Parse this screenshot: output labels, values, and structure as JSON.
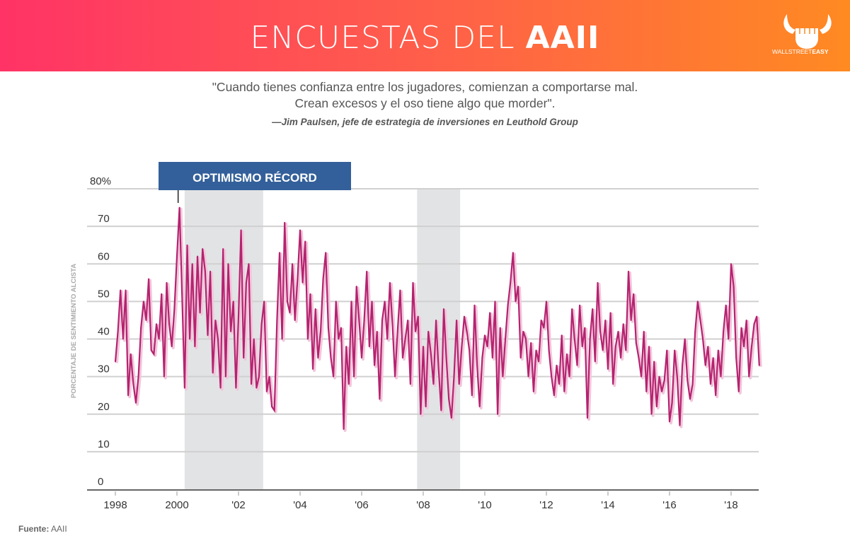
{
  "header": {
    "title_light": "ENCUESTAS DEL ",
    "title_bold": "AAII",
    "logo_text_light": "WALLSTREET",
    "logo_text_bold": "EASY",
    "brand_colors": [
      "#ff3366",
      "#ff8a22"
    ]
  },
  "quote": {
    "line1": "\"Cuando tienes confianza entre los jugadores, comienzan a comportarse mal.",
    "line2": "Crean excesos y el oso tiene algo que morder\".",
    "author": "—Jim Paulsen, jefe de estrategia de inversiones en Leuthold Group"
  },
  "footer": {
    "source_label": "Fuente:",
    "source_value": "AAII"
  },
  "chart_data": {
    "type": "line",
    "title": "",
    "ylabel": "PORCENTAJE DE SENTIMIENTO ALCISTA",
    "xlabel": "",
    "ylim": [
      0,
      80
    ],
    "xlim": [
      1997.6,
      2018.9
    ],
    "yticks": [
      {
        "v": 80,
        "label": "80%"
      },
      {
        "v": 70,
        "label": "70"
      },
      {
        "v": 60,
        "label": "60"
      },
      {
        "v": 50,
        "label": "50"
      },
      {
        "v": 40,
        "label": "40"
      },
      {
        "v": 30,
        "label": "30"
      },
      {
        "v": 20,
        "label": "20"
      },
      {
        "v": 10,
        "label": "10"
      },
      {
        "v": 0,
        "label": "0"
      }
    ],
    "xticks": [
      {
        "v": 1998,
        "label": "1998"
      },
      {
        "v": 2000,
        "label": "2000"
      },
      {
        "v": 2002,
        "label": "'02"
      },
      {
        "v": 2004,
        "label": "'04"
      },
      {
        "v": 2006,
        "label": "'06"
      },
      {
        "v": 2008,
        "label": "'08"
      },
      {
        "v": 2010,
        "label": "'10"
      },
      {
        "v": 2012,
        "label": "'12"
      },
      {
        "v": 2014,
        "label": "'14"
      },
      {
        "v": 2016,
        "label": "'16"
      },
      {
        "v": 2018,
        "label": "'18"
      }
    ],
    "grid": true,
    "recessions": [
      [
        2000.25,
        2002.8
      ],
      [
        2007.8,
        2009.2
      ]
    ],
    "annotation": {
      "text": "OPTIMISMO RÉCORD",
      "x": 2000.05,
      "value": 75,
      "color": "#33609a"
    },
    "series": [
      {
        "name": "Sentimiento alcista",
        "color": "#b5236f",
        "start": 1998,
        "step": 0.08333,
        "values": [
          34,
          42,
          53,
          40,
          53,
          25,
          36,
          28,
          23,
          30,
          43,
          50,
          45,
          56,
          37,
          36,
          44,
          40,
          52,
          30,
          55,
          44,
          38,
          48,
          62,
          75,
          52,
          27,
          65,
          40,
          60,
          38,
          62,
          47,
          64,
          58,
          41,
          58,
          31,
          45,
          40,
          27,
          64,
          30,
          60,
          42,
          50,
          27,
          46,
          69,
          35,
          55,
          60,
          28,
          40,
          27,
          30,
          44,
          50,
          26,
          30,
          22,
          21,
          45,
          63,
          40,
          71,
          50,
          47,
          60,
          45,
          56,
          69,
          55,
          66,
          40,
          52,
          32,
          48,
          35,
          42,
          56,
          63,
          43,
          35,
          30,
          50,
          40,
          43,
          16,
          38,
          28,
          50,
          30,
          54,
          45,
          35,
          45,
          58,
          38,
          50,
          33,
          42,
          24,
          45,
          50,
          40,
          55,
          44,
          30,
          42,
          53,
          35,
          40,
          45,
          28,
          55,
          42,
          46,
          20,
          38,
          22,
          42,
          36,
          28,
          45,
          32,
          21,
          48,
          35,
          24,
          19,
          30,
          45,
          28,
          38,
          46,
          42,
          37,
          25,
          49,
          33,
          22,
          35,
          41,
          38,
          47,
          35,
          50,
          20,
          43,
          30,
          40,
          49,
          55,
          63,
          50,
          54,
          35,
          42,
          40,
          30,
          39,
          26,
          37,
          34,
          45,
          43,
          50,
          37,
          30,
          25,
          33,
          28,
          41,
          26,
          36,
          30,
          48,
          40,
          33,
          49,
          38,
          43,
          19,
          40,
          48,
          34,
          55,
          42,
          37,
          45,
          32,
          47,
          28,
          38,
          42,
          35,
          44,
          37,
          58,
          45,
          52,
          39,
          35,
          30,
          42,
          26,
          38,
          20,
          34,
          22,
          30,
          26,
          29,
          37,
          18,
          23,
          37,
          30,
          17,
          33,
          40,
          29,
          24,
          28,
          42,
          50,
          45,
          40,
          33,
          38,
          28,
          35,
          25,
          37,
          30,
          42,
          49,
          40,
          60,
          54,
          35,
          26,
          43,
          38,
          45,
          30,
          38,
          44,
          46,
          33
        ]
      }
    ]
  }
}
